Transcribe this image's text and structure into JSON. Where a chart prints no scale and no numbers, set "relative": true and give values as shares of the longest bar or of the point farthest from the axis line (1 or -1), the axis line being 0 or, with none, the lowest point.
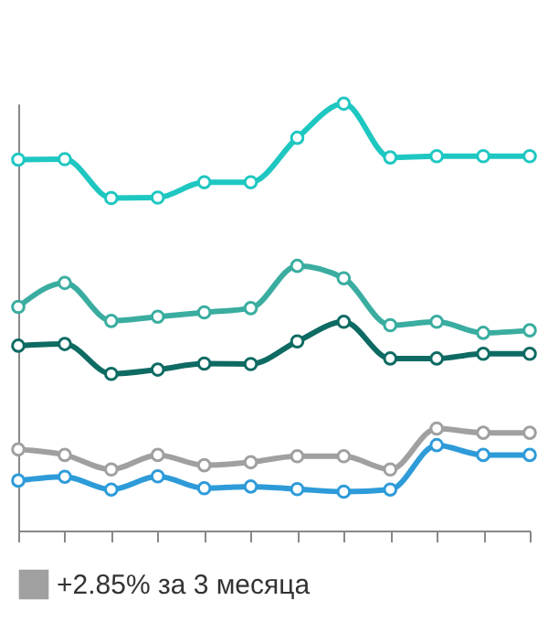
{
  "chart_data": {
    "type": "line",
    "relative": true,
    "categories": [
      null,
      null,
      null,
      null,
      null,
      null,
      null,
      null,
      null,
      null,
      null,
      null
    ],
    "marker": "circle",
    "legend": "bottom",
    "series": [
      {
        "color": "#1fc7c1",
        "values": [
          0.869,
          0.87,
          0.779,
          0.78,
          0.816,
          0.816,
          0.92,
          1,
          0.874,
          0.877,
          0.877,
          0.877
        ]
      },
      {
        "color": "#3aada0",
        "values": [
          0.524,
          0.58,
          0.491,
          0.501,
          0.511,
          0.521,
          0.62,
          0.591,
          0.481,
          0.489,
          0.463,
          0.469
        ]
      },
      {
        "color": "#0e6b63",
        "values": [
          0.433,
          0.437,
          0.367,
          0.377,
          0.391,
          0.39,
          0.443,
          0.489,
          0.403,
          0.403,
          0.414,
          0.414
        ]
      },
      {
        "name": "+2.85% за 3 месяца",
        "color": "#a0a0a0",
        "values": [
          0.19,
          0.177,
          0.143,
          0.177,
          0.153,
          0.16,
          0.174,
          0.174,
          0.143,
          0.239,
          0.229,
          0.229
        ]
      },
      {
        "color": "#2e9bd9",
        "values": [
          0.117,
          0.126,
          0.096,
          0.127,
          0.099,
          0.103,
          0.097,
          0.091,
          0.096,
          0.2,
          0.177,
          0.177
        ]
      }
    ]
  }
}
